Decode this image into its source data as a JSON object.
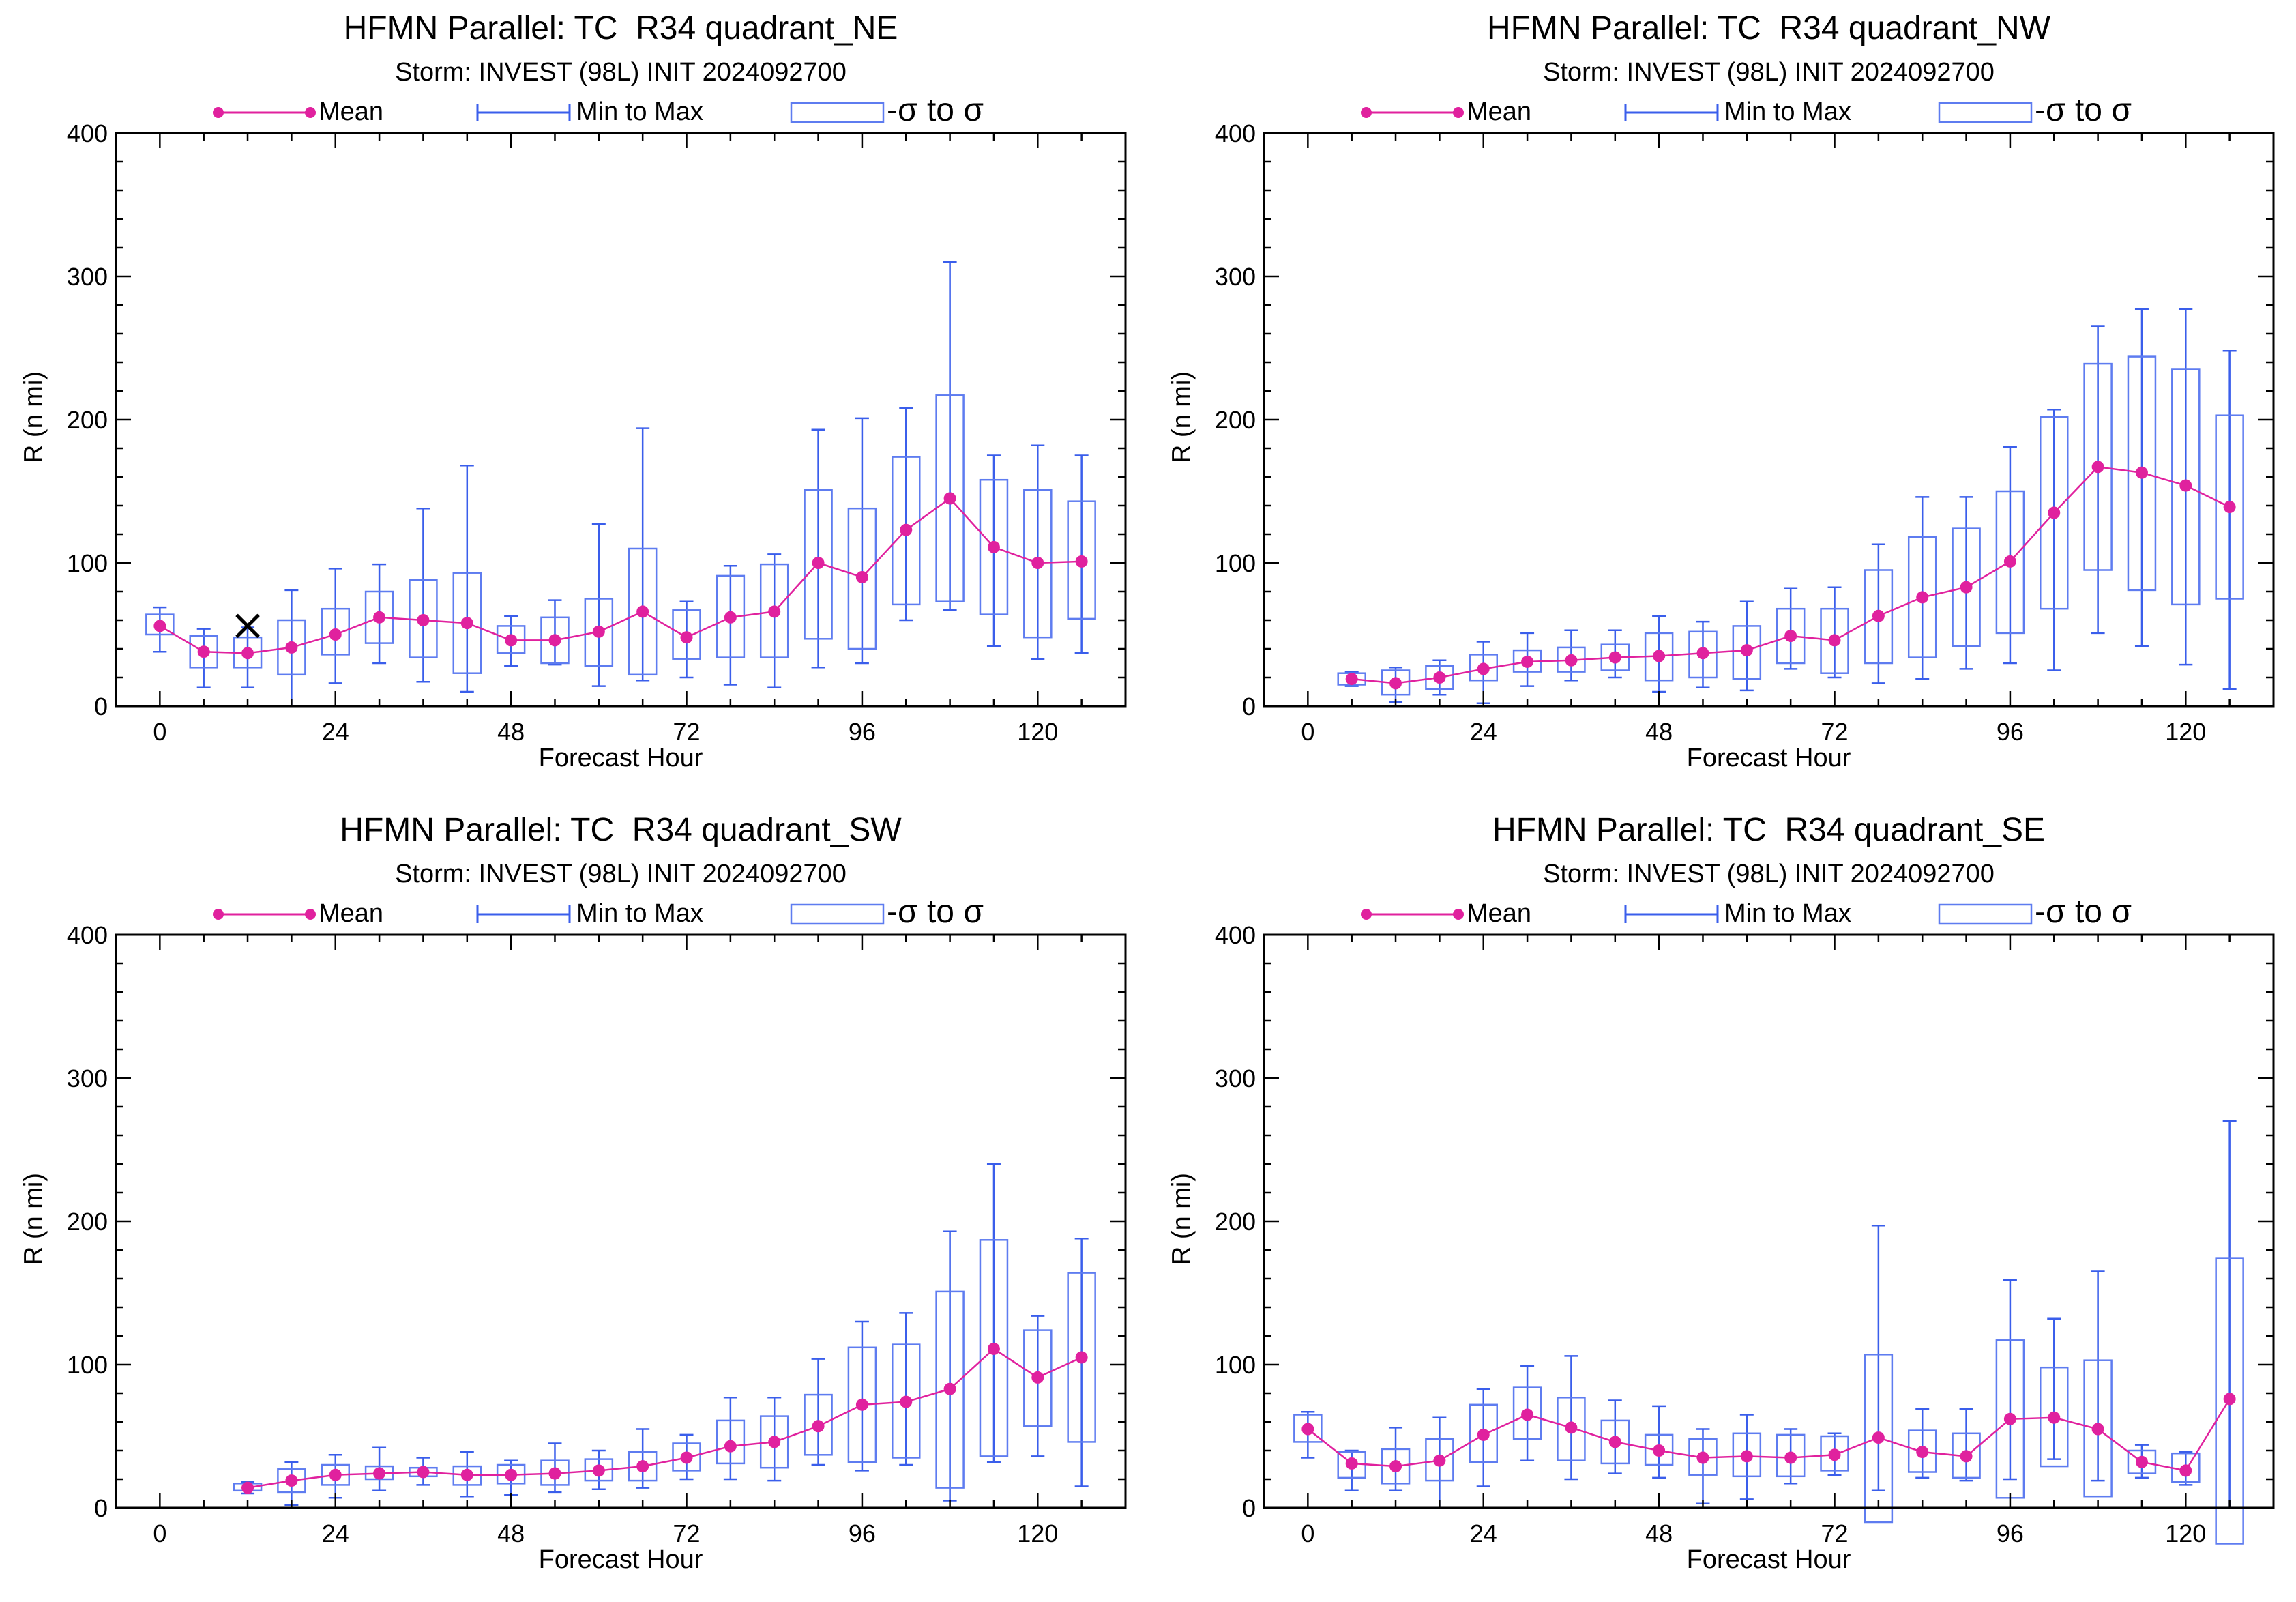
{
  "colors": {
    "mean": "#E0219E",
    "minmax": "#3A5EEB",
    "sigma": "#5E7CF0",
    "axis": "#000000",
    "marker": "#000000"
  },
  "legend": {
    "mean_label": "Mean",
    "minmax_label": "Min to Max",
    "sigma_label": "-σ to σ"
  },
  "chart_data": [
    {
      "type": "box-line",
      "title": "HFMN Parallel: TC  R34 quadrant_NE",
      "subtitle": "Storm: INVEST (98L) INIT 2024092700",
      "xlabel": "Forecast Hour",
      "ylabel": "R (n mi)",
      "xlim": [
        -6,
        132
      ],
      "ylim": [
        0,
        400
      ],
      "xticks": [
        "0",
        "24",
        "48",
        "72",
        "96",
        "120"
      ],
      "yticks": [
        "0",
        "100",
        "200",
        "300",
        "400"
      ],
      "x": [
        0,
        6,
        12,
        18,
        24,
        30,
        36,
        42,
        48,
        54,
        60,
        66,
        72,
        78,
        84,
        90,
        96,
        102,
        108,
        114,
        120,
        126
      ],
      "mean": [
        56,
        38,
        37,
        41,
        50,
        62,
        60,
        58,
        46,
        46,
        52,
        66,
        48,
        62,
        66,
        100,
        90,
        123,
        145,
        111,
        100,
        101
      ],
      "sigma_lo": [
        50,
        27,
        27,
        22,
        36,
        44,
        34,
        23,
        37,
        30,
        28,
        22,
        33,
        34,
        34,
        47,
        40,
        71,
        73,
        64,
        48,
        61
      ],
      "sigma_hi": [
        64,
        49,
        48,
        60,
        68,
        80,
        88,
        93,
        56,
        62,
        75,
        110,
        67,
        91,
        99,
        151,
        138,
        174,
        217,
        158,
        151,
        143
      ],
      "min": [
        38,
        13,
        13,
        0,
        16,
        30,
        17,
        10,
        28,
        29,
        14,
        18,
        20,
        15,
        13,
        27,
        30,
        60,
        67,
        42,
        33,
        37
      ],
      "max": [
        69,
        54,
        55,
        81,
        96,
        99,
        138,
        168,
        63,
        74,
        127,
        194,
        73,
        98,
        106,
        193,
        201,
        208,
        310,
        175,
        182,
        175
      ],
      "annotation_marker": {
        "x": 12,
        "y": 56,
        "symbol": "×"
      }
    },
    {
      "type": "box-line",
      "title": "HFMN Parallel: TC  R34 quadrant_NW",
      "subtitle": "Storm: INVEST (98L) INIT 2024092700",
      "xlabel": "Forecast Hour",
      "ylabel": "R (n mi)",
      "xlim": [
        -6,
        132
      ],
      "ylim": [
        0,
        400
      ],
      "xticks": [
        "0",
        "24",
        "48",
        "72",
        "96",
        "120"
      ],
      "yticks": [
        "0",
        "100",
        "200",
        "300",
        "400"
      ],
      "x": [
        6,
        12,
        18,
        24,
        30,
        36,
        42,
        48,
        54,
        60,
        66,
        72,
        78,
        84,
        90,
        96,
        102,
        108,
        114,
        120,
        126
      ],
      "mean": [
        19,
        16,
        20,
        26,
        31,
        32,
        34,
        35,
        37,
        39,
        49,
        46,
        63,
        76,
        83,
        101,
        135,
        167,
        163,
        154,
        139
      ],
      "sigma_lo": [
        15,
        8,
        12,
        18,
        24,
        24,
        25,
        18,
        20,
        19,
        30,
        23,
        30,
        34,
        42,
        51,
        68,
        95,
        81,
        71,
        75
      ],
      "sigma_hi": [
        23,
        25,
        28,
        36,
        39,
        41,
        43,
        51,
        52,
        56,
        68,
        68,
        95,
        118,
        124,
        150,
        202,
        239,
        244,
        235,
        203
      ],
      "min": [
        14,
        3,
        8,
        2,
        14,
        18,
        20,
        10,
        13,
        11,
        26,
        20,
        16,
        19,
        26,
        30,
        25,
        51,
        42,
        29,
        12
      ],
      "max": [
        24,
        27,
        32,
        45,
        51,
        53,
        53,
        63,
        59,
        73,
        82,
        83,
        113,
        146,
        146,
        181,
        207,
        265,
        277,
        277,
        248
      ]
    },
    {
      "type": "box-line",
      "title": "HFMN Parallel: TC  R34 quadrant_SW",
      "subtitle": "Storm: INVEST (98L) INIT 2024092700",
      "xlabel": "Forecast Hour",
      "ylabel": "R (n mi)",
      "xlim": [
        -6,
        132
      ],
      "ylim": [
        0,
        400
      ],
      "xticks": [
        "0",
        "24",
        "48",
        "72",
        "96",
        "120"
      ],
      "yticks": [
        "0",
        "100",
        "200",
        "300",
        "400"
      ],
      "x": [
        12,
        18,
        24,
        30,
        36,
        42,
        48,
        54,
        60,
        66,
        72,
        78,
        84,
        90,
        96,
        102,
        108,
        114,
        120,
        126
      ],
      "mean": [
        14,
        19,
        23,
        24,
        25,
        23,
        23,
        24,
        26,
        29,
        35,
        43,
        46,
        57,
        72,
        74,
        83,
        111,
        91,
        105
      ],
      "sigma_lo": [
        12,
        11,
        16,
        20,
        22,
        16,
        17,
        16,
        19,
        19,
        26,
        31,
        28,
        37,
        32,
        35,
        14,
        36,
        57,
        46
      ],
      "sigma_hi": [
        17,
        27,
        30,
        29,
        28,
        29,
        30,
        33,
        34,
        39,
        45,
        61,
        64,
        79,
        112,
        114,
        151,
        187,
        124,
        164
      ],
      "min": [
        10,
        2,
        7,
        12,
        16,
        8,
        9,
        11,
        13,
        14,
        20,
        20,
        19,
        30,
        26,
        30,
        5,
        32,
        36,
        15
      ],
      "max": [
        18,
        32,
        37,
        42,
        35,
        39,
        33,
        45,
        40,
        55,
        51,
        77,
        77,
        104,
        130,
        136,
        193,
        240,
        134,
        188
      ]
    },
    {
      "type": "box-line",
      "title": "HFMN Parallel: TC  R34 quadrant_SE",
      "subtitle": "Storm: INVEST (98L) INIT 2024092700",
      "xlabel": "Forecast Hour",
      "ylabel": "R (n mi)",
      "xlim": [
        -6,
        132
      ],
      "ylim": [
        0,
        400
      ],
      "xticks": [
        "0",
        "24",
        "48",
        "72",
        "96",
        "120"
      ],
      "yticks": [
        "0",
        "100",
        "200",
        "300",
        "400"
      ],
      "x": [
        0,
        6,
        12,
        18,
        24,
        30,
        36,
        42,
        48,
        54,
        60,
        66,
        72,
        78,
        84,
        90,
        96,
        102,
        108,
        114,
        120,
        126
      ],
      "mean": [
        55,
        31,
        29,
        33,
        51,
        65,
        56,
        46,
        40,
        35,
        36,
        35,
        37,
        49,
        39,
        36,
        62,
        63,
        55,
        32,
        26,
        76
      ],
      "sigma_lo": [
        46,
        21,
        17,
        19,
        32,
        48,
        33,
        31,
        30,
        23,
        22,
        22,
        26,
        -10,
        25,
        21,
        7,
        29,
        8,
        24,
        18,
        -25
      ],
      "sigma_hi": [
        65,
        39,
        41,
        48,
        72,
        84,
        77,
        61,
        51,
        48,
        52,
        51,
        50,
        107,
        54,
        52,
        117,
        98,
        103,
        40,
        38,
        174
      ],
      "min": [
        35,
        12,
        12,
        0,
        15,
        33,
        20,
        24,
        21,
        3,
        6,
        17,
        23,
        12,
        21,
        19,
        20,
        34,
        19,
        21,
        16,
        0
      ],
      "max": [
        67,
        40,
        56,
        63,
        83,
        99,
        106,
        75,
        71,
        55,
        65,
        55,
        52,
        197,
        69,
        69,
        159,
        132,
        165,
        44,
        39,
        270
      ]
    }
  ]
}
